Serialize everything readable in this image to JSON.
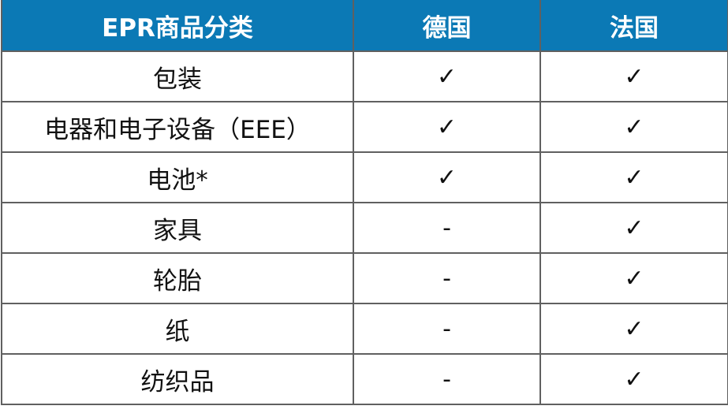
{
  "table": {
    "headers": [
      "EPR商品分类",
      "德国",
      "法国"
    ],
    "rows": [
      [
        "包装",
        "✓",
        "✓"
      ],
      [
        "电器和电子设备（EEE）",
        "✓",
        "✓"
      ],
      [
        "电池*",
        "✓",
        "✓"
      ],
      [
        "家具",
        "-",
        "✓"
      ],
      [
        "轮胎",
        "-",
        "✓"
      ],
      [
        "纸",
        "-",
        "✓"
      ],
      [
        "纺织品",
        "-",
        "✓"
      ]
    ]
  },
  "colors": {
    "header_bg": "#0b79b5",
    "border": "#606060"
  }
}
